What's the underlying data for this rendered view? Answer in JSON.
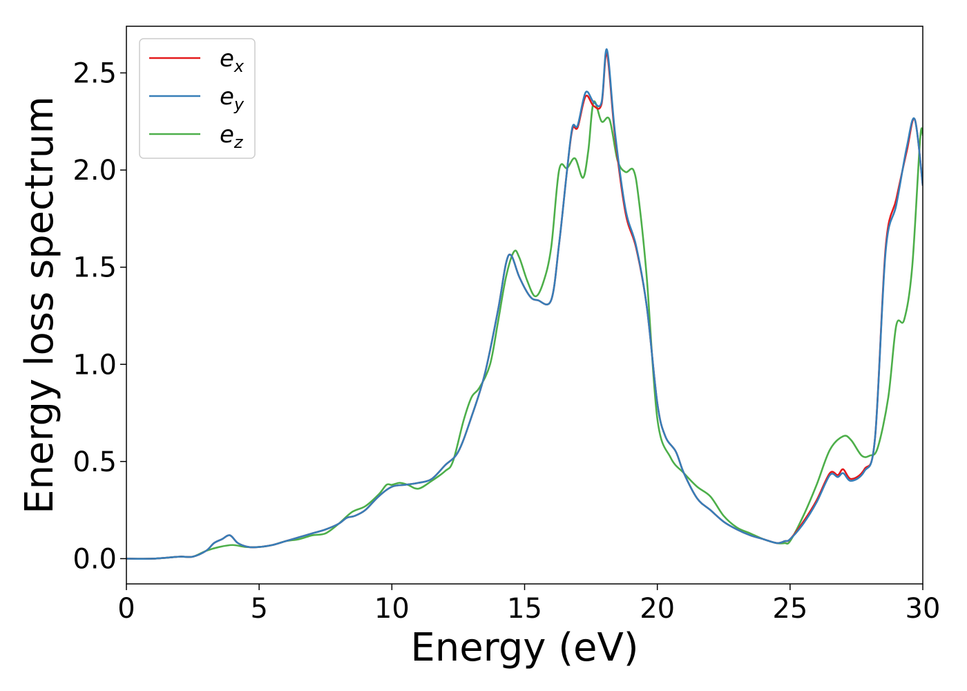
{
  "chart_data": {
    "type": "line",
    "title": "",
    "xlabel": "Energy (eV)",
    "ylabel": "Energy loss spectrum",
    "xlim": [
      0,
      30
    ],
    "ylim": [
      -0.13,
      2.74
    ],
    "xticks": [
      0,
      5,
      10,
      15,
      20,
      25,
      30
    ],
    "yticks": [
      0.0,
      0.5,
      1.0,
      1.5,
      2.0,
      2.5
    ],
    "xtick_labels": [
      "0",
      "5",
      "10",
      "15",
      "20",
      "25",
      "30"
    ],
    "ytick_labels": [
      "0.0",
      "0.5",
      "1.0",
      "1.5",
      "2.0",
      "2.5"
    ],
    "grid": false,
    "legend_position": "top-left",
    "series": [
      {
        "name": "e_x",
        "legend_main": "e",
        "legend_sub": "x",
        "color": "#e41a1c",
        "x": [
          0,
          1,
          2,
          2.5,
          3,
          3.3,
          3.6,
          3.9,
          4.2,
          4.6,
          5,
          5.5,
          6,
          6.5,
          7,
          7.5,
          8,
          8.3,
          8.6,
          9,
          9.5,
          10,
          10.5,
          11,
          11.5,
          12,
          12.5,
          13,
          13.5,
          14,
          14.3,
          14.5,
          14.8,
          15.2,
          15.5,
          16,
          16.3,
          16.6,
          16.8,
          17,
          17.3,
          17.6,
          17.9,
          18.1,
          18.4,
          18.8,
          19.2,
          19.6,
          20,
          20.3,
          20.7,
          21,
          21.5,
          22,
          22.5,
          23,
          23.5,
          24,
          24.5,
          24.8,
          25,
          25.5,
          26,
          26.5,
          26.8,
          27,
          27.3,
          27.8,
          28.2,
          28.6,
          29,
          29.4,
          29.7,
          30
        ],
        "y": [
          0,
          0,
          0.01,
          0.01,
          0.04,
          0.08,
          0.1,
          0.12,
          0.08,
          0.06,
          0.06,
          0.07,
          0.09,
          0.11,
          0.13,
          0.15,
          0.18,
          0.21,
          0.22,
          0.25,
          0.32,
          0.37,
          0.38,
          0.39,
          0.41,
          0.48,
          0.55,
          0.73,
          0.95,
          1.28,
          1.52,
          1.56,
          1.45,
          1.35,
          1.33,
          1.33,
          1.62,
          2.0,
          2.21,
          2.22,
          2.38,
          2.33,
          2.34,
          2.6,
          2.18,
          1.78,
          1.6,
          1.3,
          0.8,
          0.63,
          0.55,
          0.44,
          0.31,
          0.25,
          0.19,
          0.15,
          0.12,
          0.1,
          0.08,
          0.09,
          0.1,
          0.19,
          0.3,
          0.44,
          0.43,
          0.46,
          0.41,
          0.46,
          0.62,
          1.6,
          1.85,
          2.1,
          2.26,
          1.92
        ]
      },
      {
        "name": "e_y",
        "legend_main": "e",
        "legend_sub": "y",
        "color": "#377eb8",
        "x": [
          0,
          1,
          2,
          2.5,
          3,
          3.3,
          3.6,
          3.9,
          4.2,
          4.6,
          5,
          5.5,
          6,
          6.5,
          7,
          7.5,
          8,
          8.3,
          8.6,
          9,
          9.5,
          10,
          10.5,
          11,
          11.5,
          12,
          12.5,
          13,
          13.5,
          14,
          14.3,
          14.5,
          14.8,
          15.2,
          15.5,
          16,
          16.3,
          16.6,
          16.8,
          17,
          17.3,
          17.6,
          17.9,
          18.1,
          18.4,
          18.8,
          19.2,
          19.6,
          20,
          20.3,
          20.7,
          21,
          21.5,
          22,
          22.5,
          23,
          23.5,
          24,
          24.5,
          24.8,
          25,
          25.5,
          26,
          26.5,
          26.8,
          27,
          27.3,
          27.8,
          28.2,
          28.6,
          29,
          29.4,
          29.7,
          30
        ],
        "y": [
          0,
          0,
          0.01,
          0.01,
          0.04,
          0.08,
          0.1,
          0.12,
          0.08,
          0.06,
          0.06,
          0.07,
          0.09,
          0.11,
          0.13,
          0.15,
          0.18,
          0.21,
          0.22,
          0.25,
          0.32,
          0.37,
          0.38,
          0.39,
          0.41,
          0.48,
          0.55,
          0.73,
          0.95,
          1.28,
          1.52,
          1.56,
          1.45,
          1.35,
          1.33,
          1.33,
          1.62,
          2.0,
          2.22,
          2.23,
          2.4,
          2.35,
          2.35,
          2.62,
          2.2,
          1.8,
          1.61,
          1.3,
          0.8,
          0.63,
          0.55,
          0.44,
          0.31,
          0.25,
          0.19,
          0.15,
          0.12,
          0.1,
          0.08,
          0.09,
          0.1,
          0.18,
          0.29,
          0.43,
          0.42,
          0.44,
          0.4,
          0.45,
          0.62,
          1.58,
          1.82,
          2.12,
          2.26,
          1.92
        ]
      },
      {
        "name": "e_z",
        "legend_main": "e",
        "legend_sub": "z",
        "color": "#4daf4a",
        "x": [
          0,
          1,
          2,
          2.5,
          3,
          3.5,
          4,
          4.5,
          5,
          5.5,
          6,
          6.5,
          7,
          7.5,
          8,
          8.5,
          9,
          9.5,
          9.8,
          10,
          10.3,
          10.6,
          11,
          11.5,
          12,
          12.3,
          12.7,
          13,
          13.3,
          13.7,
          14,
          14.3,
          14.6,
          14.8,
          15.1,
          15.4,
          15.7,
          16,
          16.3,
          16.6,
          16.9,
          17.2,
          17.4,
          17.6,
          17.9,
          18.2,
          18.5,
          18.8,
          19.1,
          19.3,
          19.6,
          20,
          20.5,
          21,
          21.5,
          22,
          22.5,
          23,
          23.5,
          24,
          24.5,
          24.8,
          25,
          25.5,
          26,
          26.5,
          27,
          27.3,
          27.7,
          28,
          28.3,
          28.7,
          29,
          29.3,
          29.6,
          29.9,
          30
        ],
        "y": [
          0,
          0,
          0.01,
          0.01,
          0.04,
          0.06,
          0.07,
          0.06,
          0.06,
          0.07,
          0.09,
          0.1,
          0.12,
          0.13,
          0.18,
          0.24,
          0.27,
          0.33,
          0.38,
          0.38,
          0.39,
          0.38,
          0.36,
          0.4,
          0.45,
          0.5,
          0.71,
          0.83,
          0.88,
          1.0,
          1.22,
          1.45,
          1.58,
          1.55,
          1.43,
          1.35,
          1.42,
          1.6,
          2.0,
          2.01,
          2.06,
          1.96,
          2.1,
          2.35,
          2.25,
          2.26,
          2.05,
          1.99,
          2.0,
          1.85,
          1.45,
          0.72,
          0.52,
          0.44,
          0.37,
          0.32,
          0.22,
          0.16,
          0.13,
          0.1,
          0.08,
          0.08,
          0.09,
          0.22,
          0.38,
          0.56,
          0.63,
          0.61,
          0.53,
          0.53,
          0.57,
          0.83,
          1.2,
          1.23,
          1.5,
          2.16,
          2.18
        ]
      }
    ]
  }
}
